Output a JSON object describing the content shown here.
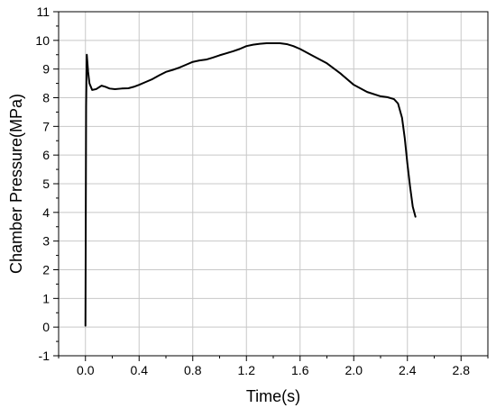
{
  "chart_data": {
    "type": "line",
    "title": "",
    "xlabel": "Time(s)",
    "ylabel": "Chamber Pressure(MPa)",
    "xlim": [
      -0.2,
      3.0
    ],
    "ylim": [
      -1,
      11
    ],
    "x_ticks": [
      "0.0",
      "0.4",
      "0.8",
      "1.2",
      "1.6",
      "2.0",
      "2.4",
      "2.8"
    ],
    "y_ticks": [
      "-1",
      "0",
      "1",
      "2",
      "3",
      "4",
      "5",
      "6",
      "7",
      "8",
      "9",
      "10",
      "11"
    ],
    "grid": true,
    "legend": "none",
    "series": [
      {
        "name": "",
        "color": "#000000",
        "x": [
          0.0,
          0.005,
          0.01,
          0.02,
          0.03,
          0.05,
          0.08,
          0.12,
          0.15,
          0.18,
          0.22,
          0.27,
          0.32,
          0.36,
          0.4,
          0.45,
          0.5,
          0.55,
          0.6,
          0.65,
          0.7,
          0.75,
          0.8,
          0.85,
          0.9,
          0.95,
          1.0,
          1.05,
          1.1,
          1.15,
          1.2,
          1.25,
          1.3,
          1.35,
          1.4,
          1.45,
          1.5,
          1.55,
          1.6,
          1.7,
          1.8,
          1.9,
          2.0,
          2.1,
          2.2,
          2.25,
          2.3,
          2.33,
          2.36,
          2.38,
          2.4,
          2.42,
          2.44,
          2.46
        ],
        "y": [
          0.05,
          7.7,
          9.5,
          8.9,
          8.5,
          8.27,
          8.3,
          8.42,
          8.38,
          8.32,
          8.3,
          8.32,
          8.33,
          8.38,
          8.45,
          8.55,
          8.65,
          8.78,
          8.9,
          8.97,
          9.05,
          9.15,
          9.25,
          9.3,
          9.33,
          9.4,
          9.48,
          9.55,
          9.62,
          9.7,
          9.8,
          9.85,
          9.88,
          9.9,
          9.9,
          9.9,
          9.87,
          9.8,
          9.7,
          9.45,
          9.2,
          8.85,
          8.45,
          8.2,
          8.05,
          8.02,
          7.95,
          7.8,
          7.3,
          6.6,
          5.7,
          4.9,
          4.2,
          3.85
        ]
      }
    ]
  }
}
